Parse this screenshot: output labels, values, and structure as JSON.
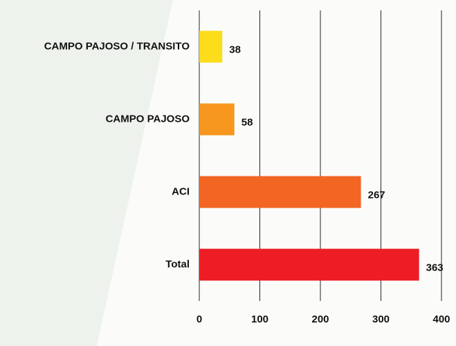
{
  "chart_data": {
    "type": "bar",
    "orientation": "horizontal",
    "categories": [
      "CAMPO PAJOSO / TRANSITO",
      "CAMPO PAJOSO",
      "ACI",
      "Total"
    ],
    "values": [
      38,
      58,
      267,
      363
    ],
    "colors": [
      "#fddc1c",
      "#f7971f",
      "#f26522",
      "#ee1c24"
    ],
    "xlim": [
      0,
      400
    ],
    "xticks": [
      0,
      100,
      200,
      300,
      400
    ],
    "grid": true
  }
}
